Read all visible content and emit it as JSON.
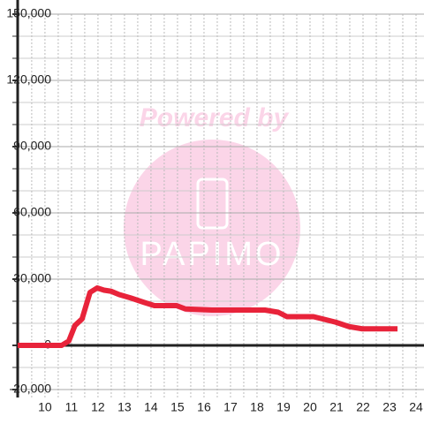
{
  "chart_data": {
    "type": "line",
    "watermark": [
      "Powered by",
      "PAPIMO"
    ],
    "x": [
      8.97,
      10.63,
      10.9,
      11.13,
      11.4,
      11.7,
      11.97,
      12.23,
      12.5,
      12.8,
      13.23,
      13.73,
      14.13,
      14.97,
      15.3,
      16.3,
      18.3,
      18.8,
      19.13,
      20.13,
      20.47,
      20.97,
      21.47,
      21.97,
      23.3
    ],
    "series": [
      {
        "color": "#e8233a",
        "values": [
          0,
          0,
          2000,
          9000,
          12000,
          24000,
          26000,
          25000,
          24500,
          23000,
          21500,
          19500,
          18000,
          18000,
          16500,
          16000,
          16000,
          15000,
          13000,
          13000,
          12000,
          10500,
          8500,
          7500,
          7500
        ]
      }
    ],
    "xlim": [
      8.97,
      24.3
    ],
    "xticks": [
      10,
      11,
      12,
      13,
      14,
      15,
      16,
      17,
      18,
      19,
      20,
      21,
      22,
      23,
      24
    ],
    "minor_xticks": [
      9.5,
      10.5,
      11.5,
      12.5,
      13.5,
      14.5,
      15.5,
      16.5,
      17.5,
      18.5,
      19.5,
      20.5,
      21.5,
      22.5,
      23.5
    ],
    "ylim": [
      -23600,
      150000
    ],
    "yticks": [
      {
        "value": -20000,
        "label": "-20,000"
      },
      0,
      {
        "value": 30000,
        "label": "30,000"
      },
      {
        "value": 60000,
        "label": "60,000"
      },
      {
        "value": 90000,
        "label": "90,000"
      },
      {
        "value": 120000,
        "label": "120,000"
      },
      {
        "value": 150000,
        "label": "150,000"
      }
    ],
    "minor_yticks": [
      -10000,
      10000,
      20000,
      40000,
      50000,
      70000,
      80000,
      100000,
      110000,
      130000,
      140000
    ],
    "grid": true
  }
}
